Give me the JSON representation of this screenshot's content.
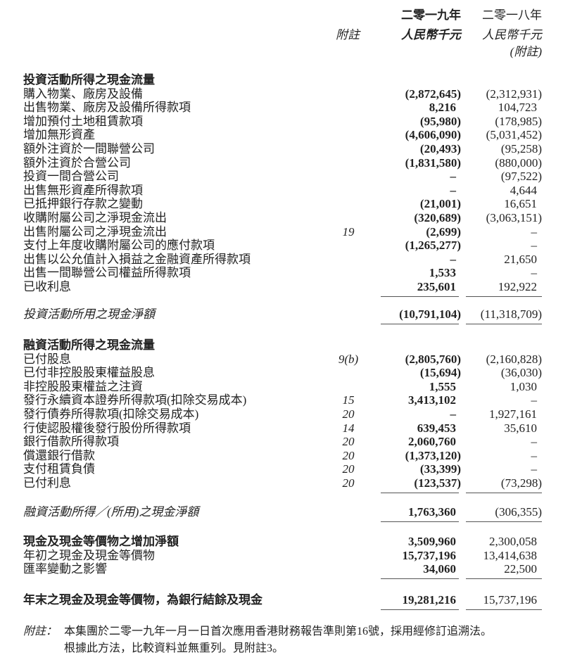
{
  "header": {
    "note_col": "附註",
    "col_2019_year": "二零一九年",
    "col_2019_unit": "人民幣千元",
    "col_2018_year": "二零一八年",
    "col_2018_unit": "人民幣千元",
    "col_2018_note": "(附註)"
  },
  "rows": [
    {
      "label": "投資活動所得之現金流量",
      "style": "bold",
      "top": 104
    },
    {
      "label": "購入物業、廠房及設備",
      "note": "",
      "v2019": "(2,872,645)",
      "v2018": "(2,312,931)"
    },
    {
      "label": "出售物業、廠房及設備所得款項",
      "note": "",
      "v2019": "8,216",
      "v2018": "104,723"
    },
    {
      "label": "增加預付土地租賃款項",
      "note": "",
      "v2019": "(95,980)",
      "v2018": "(178,985)"
    },
    {
      "label": "增加無形資產",
      "note": "",
      "v2019": "(4,606,090)",
      "v2018": "(5,031,452)"
    },
    {
      "label": "額外注資於一間聯營公司",
      "note": "",
      "v2019": "(20,493)",
      "v2018": "(95,258)"
    },
    {
      "label": "額外注資於合營公司",
      "note": "",
      "v2019": "(1,831,580)",
      "v2018": "(880,000)"
    },
    {
      "label": "投資一間合營公司",
      "note": "",
      "v2019": "–",
      "v2018": "(97,522)"
    },
    {
      "label": "出售無形資產所得款項",
      "note": "",
      "v2019": "–",
      "v2018": "4,644"
    },
    {
      "label": "已抵押銀行存款之變動",
      "note": "",
      "v2019": "(21,001)",
      "v2018": "16,651"
    },
    {
      "label": "收購附屬公司之淨現金流出",
      "note": "",
      "v2019": "(320,689)",
      "v2018": "(3,063,151)"
    },
    {
      "label": "出售附屬公司之淨現金流出",
      "note": "19",
      "v2019": "(2,699)",
      "v2018": "–"
    },
    {
      "label": "支付上年度收購附屬公司的應付款項",
      "note": "",
      "v2019": "(1,265,277)",
      "v2018": "–"
    },
    {
      "label": "出售以公允值計入損益之金融資產所得款項",
      "note": "",
      "v2019": "–",
      "v2018": "21,650"
    },
    {
      "label": "出售一間聯營公司權益所得款項",
      "note": "",
      "v2019": "1,533",
      "v2018": "–"
    },
    {
      "label": "已收利息",
      "note": "",
      "v2019": "235,601",
      "v2018": "192,922",
      "rule": true
    },
    {
      "label": "投資活動所用之現金淨額",
      "style": "ital",
      "v2019": "(10,791,104)",
      "v2018": "(11,318,709)",
      "top": 437,
      "rule": true
    },
    {
      "label": "融資活動所得之現金流量",
      "style": "bold",
      "top": 481
    },
    {
      "label": "已付股息",
      "note": "9(b)",
      "v2019": "(2,805,760)",
      "v2018": "(2,160,828)"
    },
    {
      "label": "已付非控股股東權益股息",
      "note": "",
      "v2019": "(15,694)",
      "v2018": "(36,030)"
    },
    {
      "label": "非控股股東權益之注資",
      "note": "",
      "v2019": "1,555",
      "v2018": "1,030"
    },
    {
      "label": "發行永續資本證券所得款項(扣除交易成本)",
      "note": "15",
      "v2019": "3,413,102",
      "v2018": "–"
    },
    {
      "label": "發行債券所得款項(扣除交易成本)",
      "note": "20",
      "v2019": "–",
      "v2018": "1,927,161"
    },
    {
      "label": "行使認股權後發行股份所得款項",
      "note": "14",
      "v2019": "639,453",
      "v2018": "35,610"
    },
    {
      "label": "銀行借款所得款項",
      "note": "20",
      "v2019": "2,060,760",
      "v2018": "–"
    },
    {
      "label": "償還銀行借款",
      "note": "20",
      "v2019": "(1,373,120)",
      "v2018": "–"
    },
    {
      "label": "支付租賃負債",
      "note": "20",
      "v2019": "(33,399)",
      "v2018": "–"
    },
    {
      "label": "已付利息",
      "note": "20",
      "v2019": "(123,537)",
      "v2018": "(73,298)",
      "rule": true
    },
    {
      "label": "融資活動所得／(所用)之現金淨額",
      "style": "ital",
      "v2019": "1,763,360",
      "v2018": "(306,355)",
      "top": 718,
      "rule": true
    },
    {
      "label": "現金及現金等價物之增加淨額",
      "style": "bold",
      "v2019": "3,509,960",
      "v2018": "2,300,058",
      "top": 760
    },
    {
      "label": "年初之現金及現金等價物",
      "note": "",
      "v2019": "15,737,196",
      "v2018": "13,414,638"
    },
    {
      "label": "匯率變動之影響",
      "note": "",
      "v2019": "34,060",
      "v2018": "22,500",
      "rule": true
    },
    {
      "label": "年末之現金及現金等價物，為銀行結餘及現金",
      "style": "bold",
      "v2019": "19,281,216",
      "v2018": "15,737,196",
      "top": 843,
      "rule": true
    }
  ],
  "footnote": {
    "label": "附註：",
    "line1": "本集團於二零一九年一月一日首次應用香港財務報告準則第16號，採用經修訂追溯法。",
    "line2": "根據此方法，比較資料並無重列。見附註3。"
  }
}
